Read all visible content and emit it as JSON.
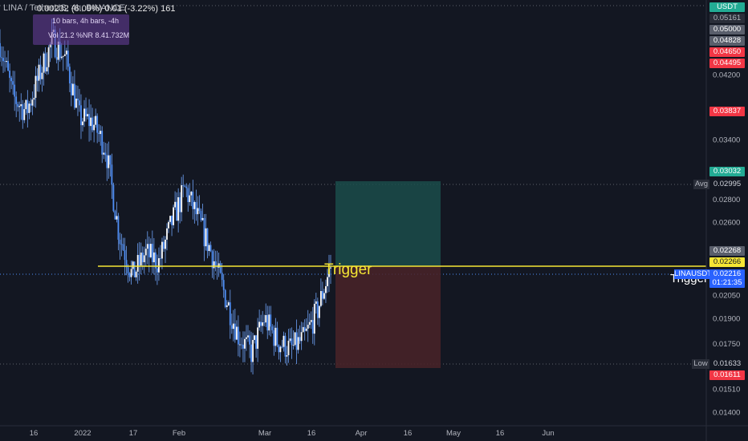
{
  "header": {
    "symbol": "LINA / TetherUS, 4h, BINANCE",
    "ohlc_overlap": "0.00232 (6.09%) 0.01 (-3.22%) 161"
  },
  "info_box": {
    "line1": "10 bars, 4h bars, -4h",
    "line2": "Vol 21.2 %NR 8.41.732M"
  },
  "currency": "USDT",
  "annotation": {
    "trigger_label": "Trigger",
    "trigger_side_label": "Trigger"
  },
  "tags": {
    "price_5161": "0.05161",
    "price_5000": "0.05000",
    "price_4828": "0.04828",
    "price_4650": "0.04650",
    "price_4495": "0.04495",
    "price_3837": "0.03837",
    "price_3032": "0.03032",
    "avg_label": "Avg",
    "avg_value": "0.02995",
    "price_2268": "0.02268",
    "trigger_value": "0.02266",
    "symbol_tag": "LINAUSDT",
    "last_price": "0.02216",
    "countdown": "01:21:35",
    "low_label": "Low",
    "low_value": "0.01633",
    "price_1611": "0.01611"
  },
  "colors": {
    "background": "#131722",
    "candle_line": "#4f8ff7",
    "trigger_line": "#f5e634",
    "profit_zone": "#1b4c4a",
    "loss_zone": "#4a2328",
    "red_tag": "#f23645",
    "green_tag": "#22ab94",
    "grey_tag": "#595e6b",
    "blue_tag": "#2962ff"
  },
  "chart_data": {
    "type": "line",
    "title": "LINA / TetherUS, 4h, BINANCE",
    "ylabel": "USDT",
    "y_scale": "log",
    "ylim": [
      0.0134,
      0.0535
    ],
    "y_ticks": [
      "0.04200",
      "0.03400",
      "0.02800",
      "0.02600",
      "0.02050",
      "0.01900",
      "0.01750",
      "0.01510",
      "0.01400"
    ],
    "x_ticks": [
      "16",
      "2022",
      "17",
      "Feb",
      "Mar",
      "16",
      "Apr",
      "16",
      "May",
      "16",
      "Jun"
    ],
    "x": [
      "Dec 16",
      "Dec 20",
      "Dec 24",
      "Dec 28",
      "2022",
      "Jan 5",
      "Jan 9",
      "Jan 13",
      "Jan 17",
      "Jan 21",
      "Jan 25",
      "Jan 29",
      "Feb",
      "Feb 5",
      "Feb 9",
      "Feb 13",
      "Feb 17",
      "Feb 21",
      "Feb 25",
      "Mar",
      "Mar 5",
      "Mar 9",
      "Mar 13",
      "Mar 16",
      "Mar 19",
      "Mar 22"
    ],
    "series": [
      {
        "values": [
          0.0465,
          0.039,
          0.0372,
          0.042,
          0.047,
          0.044,
          0.0365,
          0.036,
          0.033,
          0.025,
          0.0218,
          0.0235,
          0.0228,
          0.026,
          0.029,
          0.0262,
          0.0235,
          0.0205,
          0.018,
          0.017,
          0.019,
          0.0176,
          0.0172,
          0.0178,
          0.0195,
          0.0225
        ]
      }
    ],
    "trigger_level": 0.02266,
    "last_price": 0.02216,
    "avg_price": 0.02995,
    "low_price": 0.01633,
    "position": {
      "entry": 0.02266,
      "target": 0.03032,
      "stop": 0.01611,
      "start": "Mar 22",
      "end": "Apr 26"
    },
    "grid": false
  }
}
